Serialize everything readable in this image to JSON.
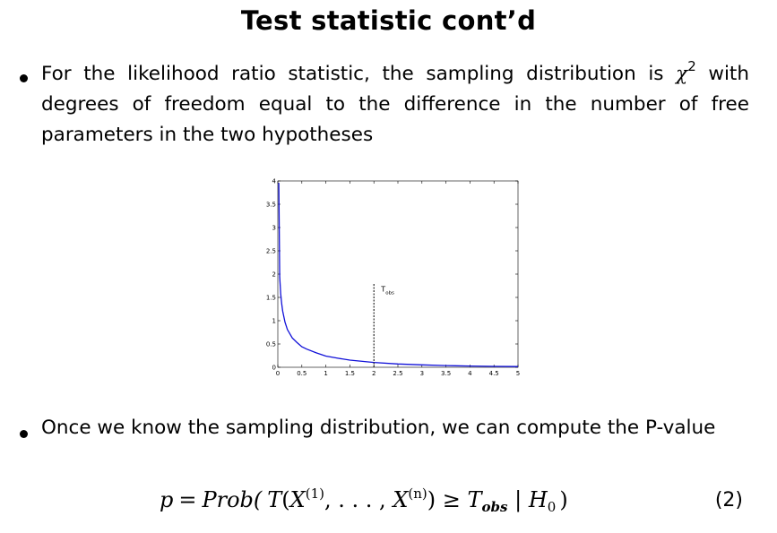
{
  "title": "Test statistic cont’d",
  "bullet1": {
    "text": "For the likelihood ratio statistic, the sampling distribution is",
    "chi": "χ",
    "chi_sup": "2",
    "text2": "with degrees of freedom equal to the difference in the number of free parameters in the two hypotheses"
  },
  "bullet2": {
    "text": "Once we know the sampling distribution, we can compute the P-value"
  },
  "equation": {
    "lhs": "p",
    "eq": "=",
    "prob": "Prob(",
    "T": "T",
    "open": "(",
    "X1": "X",
    "sup1": "(1)",
    "dots": ", . . . , ",
    "Xn": "X",
    "supn": "(n)",
    "close": ")",
    "geq": " ≥ ",
    "Tobs": "T",
    "obs": "obs",
    "bar": " | ",
    "H": "H",
    "zero": "0",
    "end": ")",
    "number": "(2)"
  },
  "chart_data": {
    "type": "line",
    "title": "",
    "xlabel": "",
    "ylabel": "",
    "xlim": [
      0,
      5
    ],
    "ylim": [
      0,
      4
    ],
    "xticks": [
      "0",
      "0.5",
      "1",
      "1.5",
      "2",
      "2.5",
      "3",
      "3.5",
      "4",
      "4.5",
      "5"
    ],
    "yticks": [
      "0",
      "0.5",
      "1",
      "1.5",
      "2",
      "2.5",
      "3",
      "3.5",
      "4"
    ],
    "series": [
      {
        "color": "#1010d8",
        "x": [
          0.02,
          0.04,
          0.06,
          0.08,
          0.1,
          0.15,
          0.2,
          0.3,
          0.4,
          0.5,
          0.6,
          0.8,
          1.0,
          1.25,
          1.5,
          2.0,
          2.5,
          3.0,
          3.5,
          4.0,
          4.5,
          5.0
        ],
        "y": [
          3.96,
          1.94,
          1.58,
          1.37,
          1.21,
          0.97,
          0.81,
          0.63,
          0.53,
          0.44,
          0.39,
          0.31,
          0.24,
          0.195,
          0.154,
          0.104,
          0.072,
          0.051,
          0.037,
          0.027,
          0.02,
          0.015
        ]
      }
    ],
    "marker": {
      "x": 2,
      "y_top": 1.8,
      "label": "T",
      "label_sub": "obs",
      "style": "dashed"
    }
  }
}
